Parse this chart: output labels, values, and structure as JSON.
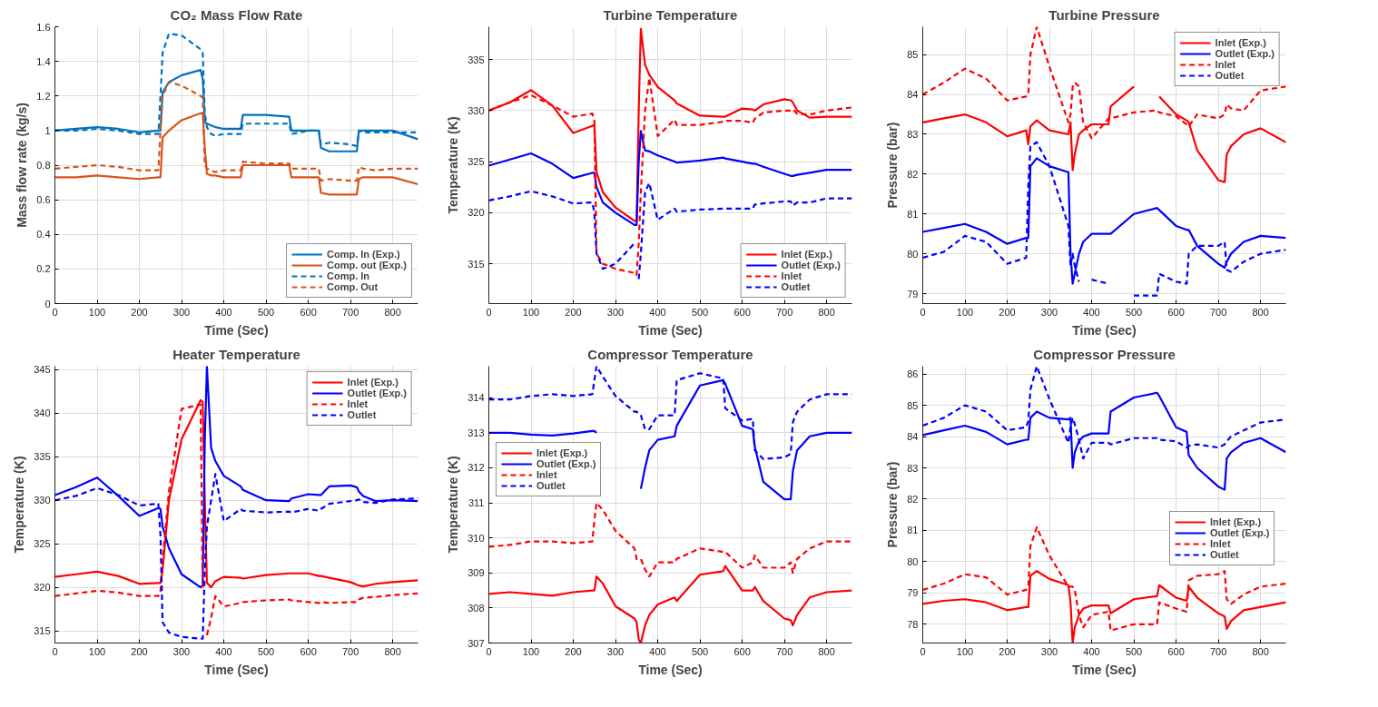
{
  "chart_data": [
    {
      "type": "line",
      "title": "CO₂ Mass Flow Rate",
      "xlabel": "Time (Sec)",
      "ylabel": "Mass flow rate (kg/s)",
      "xlim": [
        0,
        860
      ],
      "ylim": [
        0,
        1.6
      ],
      "xticks": [
        0,
        100,
        200,
        300,
        400,
        500,
        600,
        700,
        800
      ],
      "yticks": [
        0,
        0.2,
        0.4,
        0.6,
        0.8,
        1,
        1.2,
        1.4,
        1.6
      ],
      "grid": true,
      "legend": "bottom right",
      "x": [
        0,
        50,
        100,
        150,
        200,
        245,
        250,
        255,
        270,
        300,
        345,
        350,
        355,
        360,
        370,
        380,
        400,
        440,
        445,
        500,
        555,
        560,
        600,
        625,
        630,
        650,
        700,
        715,
        720,
        730,
        760,
        800,
        860
      ],
      "series": [
        {
          "name": "Comp. In (Exp.)",
          "color": "#0072bd",
          "line_style": "solid",
          "values": [
            1.0,
            1.01,
            1.02,
            1.01,
            0.99,
            1.0,
            1.0,
            1.22,
            1.28,
            1.32,
            1.35,
            1.3,
            1.05,
            1.04,
            1.03,
            1.02,
            1.01,
            1.01,
            1.09,
            1.09,
            1.08,
            1.0,
            1.0,
            1.0,
            0.9,
            0.88,
            0.88,
            0.88,
            1.0,
            1.0,
            1.0,
            1.0,
            0.95
          ]
        },
        {
          "name": "Comp. out (Exp.)",
          "color": "#d95319",
          "line_style": "solid",
          "values": [
            0.73,
            0.73,
            0.74,
            0.73,
            0.72,
            0.73,
            0.73,
            0.96,
            1.0,
            1.06,
            1.1,
            1.1,
            0.9,
            0.75,
            0.74,
            0.74,
            0.73,
            0.73,
            0.8,
            0.8,
            0.8,
            0.73,
            0.73,
            0.73,
            0.64,
            0.63,
            0.63,
            0.63,
            0.72,
            0.73,
            0.73,
            0.73,
            0.69
          ]
        },
        {
          "name": "Comp. In",
          "color": "#0072bd",
          "line_style": "dashed",
          "values": [
            1.0,
            1.0,
            1.01,
            1.0,
            0.98,
            0.98,
            1.2,
            1.45,
            1.56,
            1.55,
            1.47,
            1.45,
            1.1,
            1.02,
            0.98,
            0.97,
            0.98,
            0.98,
            1.04,
            1.04,
            1.04,
            0.98,
            1.0,
            1.0,
            0.92,
            0.93,
            0.92,
            0.91,
            1.0,
            0.99,
            0.99,
            0.99,
            0.99
          ]
        },
        {
          "name": "Comp. Out",
          "color": "#d95319",
          "line_style": "dashed",
          "values": [
            0.78,
            0.79,
            0.8,
            0.79,
            0.77,
            0.77,
            1.0,
            1.2,
            1.28,
            1.26,
            1.2,
            1.19,
            0.8,
            0.78,
            0.77,
            0.76,
            0.77,
            0.77,
            0.82,
            0.81,
            0.81,
            0.78,
            0.78,
            0.78,
            0.71,
            0.72,
            0.71,
            0.71,
            0.79,
            0.78,
            0.77,
            0.78,
            0.78
          ]
        }
      ]
    },
    {
      "type": "line",
      "title": "Turbine Temperature",
      "xlabel": "Time (Sec)",
      "ylabel": "Temperature (K)",
      "xlim": [
        0,
        860
      ],
      "ylim": [
        311.1,
        338.2
      ],
      "xticks": [
        0,
        100,
        200,
        300,
        400,
        500,
        600,
        700,
        800
      ],
      "yticks": [
        315,
        320,
        325,
        330,
        335
      ],
      "grid": true,
      "legend": "bottom right",
      "x": [
        0,
        50,
        100,
        150,
        200,
        245,
        250,
        255,
        270,
        300,
        345,
        350,
        355,
        360,
        370,
        380,
        400,
        440,
        445,
        500,
        555,
        560,
        600,
        625,
        630,
        650,
        700,
        715,
        720,
        730,
        760,
        800,
        860
      ],
      "series": [
        {
          "name": "Inlet (Exp.)",
          "color": "#ff0000",
          "line_style": "solid",
          "values": [
            330,
            330.8,
            332,
            330.5,
            327.8,
            328.5,
            328.6,
            324,
            322,
            320.5,
            319.2,
            319.2,
            330,
            338,
            334.5,
            333.5,
            332.3,
            331,
            330.7,
            329.5,
            329.4,
            329.4,
            330.2,
            330.1,
            330,
            330.6,
            331.1,
            331,
            330.8,
            330,
            329.3,
            329.4,
            329.4
          ]
        },
        {
          "name": "Outlet (Exp.)",
          "color": "#0000ff",
          "line_style": "solid",
          "values": [
            324.6,
            325.2,
            325.8,
            324.8,
            323.4,
            323.9,
            323.9,
            322.5,
            321,
            320,
            318.8,
            318.8,
            325,
            328,
            326.1,
            326,
            325.6,
            325,
            324.9,
            325.1,
            325.4,
            325.3,
            325,
            324.8,
            324.8,
            324.5,
            323.8,
            323.6,
            323.6,
            323.7,
            323.9,
            324.2,
            324.2
          ]
        },
        {
          "name": "Inlet",
          "color": "#ff0000",
          "line_style": "dashed",
          "values": [
            330,
            330.8,
            331.5,
            330.5,
            329.4,
            329.7,
            329,
            316,
            315,
            314.5,
            314.1,
            313.9,
            317,
            322,
            330,
            333.2,
            327.5,
            329.1,
            328.6,
            328.6,
            328.9,
            329,
            329,
            328.8,
            329.2,
            329.8,
            330,
            330,
            330.1,
            329.7,
            329.6,
            330,
            330.3
          ]
        },
        {
          "name": "Outlet",
          "color": "#0000ff",
          "line_style": "dashed",
          "values": [
            321.2,
            321.6,
            322.1,
            321.6,
            320.9,
            321,
            320,
            316,
            314.5,
            315,
            317,
            null,
            313.5,
            316,
            322,
            322.9,
            319.3,
            320.4,
            320.1,
            320.3,
            320.4,
            320.4,
            320.4,
            320.4,
            320.8,
            320.9,
            321.1,
            321.1,
            320.7,
            321,
            321,
            321.4,
            321.4
          ]
        }
      ]
    },
    {
      "type": "line",
      "title": "Turbine Pressure",
      "xlabel": "Time (Sec)",
      "ylabel": "Pressure (bar)",
      "xlim": [
        0,
        860
      ],
      "ylim": [
        78.75,
        85.7
      ],
      "xticks": [
        0,
        100,
        200,
        300,
        400,
        500,
        600,
        700,
        800
      ],
      "yticks": [
        79,
        80,
        81,
        82,
        83,
        84,
        85
      ],
      "grid": true,
      "legend": "top right",
      "x": [
        0,
        50,
        100,
        150,
        200,
        245,
        250,
        255,
        270,
        300,
        345,
        350,
        355,
        360,
        370,
        380,
        400,
        440,
        445,
        500,
        555,
        560,
        600,
        625,
        630,
        650,
        700,
        715,
        720,
        730,
        760,
        800,
        860
      ],
      "series": [
        {
          "name": "Inlet (Exp.)",
          "color": "#ff0000",
          "line_style": "solid",
          "values": [
            83.3,
            83.4,
            83.5,
            83.3,
            82.95,
            83.1,
            82.75,
            83.2,
            83.35,
            83.1,
            83,
            83.3,
            82.1,
            82.5,
            83,
            83.1,
            83.25,
            83.25,
            83.7,
            84.2,
            null,
            83.95,
            83.5,
            83.35,
            83.3,
            82.6,
            81.85,
            81.8,
            82.5,
            82.7,
            83,
            83.15,
            82.8
          ]
        },
        {
          "name": "Outlet (Exp.)",
          "color": "#0000ff",
          "line_style": "solid",
          "values": [
            80.55,
            80.65,
            80.75,
            80.55,
            80.25,
            80.4,
            80.4,
            82.2,
            82.4,
            82.2,
            82.05,
            80,
            79.25,
            79.5,
            80,
            80.3,
            80.5,
            80.5,
            80.5,
            81,
            81.15,
            81.1,
            80.7,
            80.6,
            80.6,
            80.2,
            79.75,
            79.65,
            79.8,
            80,
            80.3,
            80.45,
            80.4
          ]
        },
        {
          "name": "Inlet",
          "color": "#ff0000",
          "line_style": "dashed",
          "values": [
            84,
            84.3,
            84.65,
            84.4,
            83.85,
            83.95,
            84,
            85,
            85.7,
            84.7,
            83.3,
            83.5,
            84.2,
            84.3,
            84.2,
            83.3,
            82.9,
            83.4,
            83.4,
            83.55,
            83.6,
            83.55,
            83.45,
            83.25,
            83.2,
            83.5,
            83.4,
            83.5,
            83.75,
            83.65,
            83.6,
            84.1,
            84.2
          ]
        },
        {
          "name": "Outlet",
          "color": "#0000ff",
          "line_style": "dashed",
          "values": [
            79.9,
            80.05,
            80.45,
            80.3,
            79.75,
            79.9,
            81.7,
            82.7,
            82.8,
            82.2,
            80.7,
            79.7,
            80,
            79.7,
            79.3,
            null,
            79.35,
            79.25,
            null,
            78.95,
            78.95,
            79.5,
            79.3,
            79.25,
            80,
            80.2,
            80.2,
            80.3,
            79.6,
            79.55,
            79.8,
            80,
            80.1
          ]
        }
      ]
    },
    {
      "type": "line",
      "title": "Heater Temperature",
      "xlabel": "Time (Sec)",
      "ylabel": "Temperature (K)",
      "xlim": [
        0,
        860
      ],
      "ylim": [
        313.6,
        345.4
      ],
      "xticks": [
        0,
        100,
        200,
        300,
        400,
        500,
        600,
        700,
        800
      ],
      "yticks": [
        315,
        320,
        325,
        330,
        335,
        340,
        345
      ],
      "grid": true,
      "legend": "top right",
      "x": [
        0,
        50,
        100,
        150,
        200,
        245,
        250,
        255,
        270,
        300,
        345,
        350,
        355,
        360,
        370,
        380,
        400,
        440,
        445,
        500,
        555,
        560,
        600,
        625,
        630,
        650,
        700,
        715,
        720,
        730,
        760,
        800,
        860
      ],
      "series": [
        {
          "name": "Inlet (Exp.)",
          "color": "#ff0000",
          "line_style": "solid",
          "values": [
            321.2,
            321.5,
            321.8,
            321.3,
            320.4,
            320.5,
            320.5,
            322,
            330,
            337,
            341.5,
            341.3,
            330,
            320.5,
            320,
            320.7,
            321.2,
            321.1,
            321,
            321.4,
            321.6,
            321.6,
            321.6,
            321.3,
            321.3,
            321.1,
            320.6,
            320.3,
            320.2,
            320.1,
            320.4,
            320.6,
            320.8
          ]
        },
        {
          "name": "Outlet (Exp.)",
          "color": "#0000ff",
          "line_style": "solid",
          "values": [
            330.6,
            331.5,
            332.6,
            330.5,
            328.2,
            329.1,
            329,
            327,
            324.5,
            321.5,
            320,
            320.2,
            337,
            345.4,
            336,
            334.5,
            332.8,
            331.6,
            331.2,
            330,
            329.9,
            330.2,
            330.7,
            330.6,
            330.6,
            331.6,
            331.7,
            331.5,
            331,
            330.5,
            329.9,
            330,
            329.9
          ]
        },
        {
          "name": "Inlet",
          "color": "#ff0000",
          "line_style": "dashed",
          "values": [
            319,
            319.3,
            319.6,
            319.4,
            319,
            319,
            319.5,
            323,
            331,
            340.5,
            341,
            320,
            null,
            314.5,
            316.5,
            319,
            317.8,
            318.2,
            318.3,
            318.5,
            318.6,
            318.5,
            318.3,
            318.2,
            318.3,
            318.2,
            318.3,
            318.3,
            318.6,
            318.8,
            318.9,
            319.1,
            319.3
          ]
        },
        {
          "name": "Outlet",
          "color": "#0000ff",
          "line_style": "dashed",
          "values": [
            330,
            330.5,
            331.4,
            330.6,
            329.4,
            329.6,
            326,
            316,
            314.8,
            314.3,
            314.1,
            314.1,
            322,
            327,
            330,
            333,
            327.6,
            329,
            328.8,
            328.6,
            328.7,
            328.6,
            329,
            328.8,
            329,
            329.6,
            329.9,
            330,
            330.1,
            329.8,
            329.7,
            330.1,
            330.2
          ]
        }
      ]
    },
    {
      "type": "line",
      "title": "Compressor Temperature",
      "xlabel": "Time (Sec)",
      "ylabel": "Temperature (K)",
      "xlim": [
        0,
        860
      ],
      "ylim": [
        307,
        314.9
      ],
      "xticks": [
        0,
        100,
        200,
        300,
        400,
        500,
        600,
        700,
        800
      ],
      "yticks": [
        307,
        308,
        309,
        310,
        311,
        312,
        313,
        314
      ],
      "grid": true,
      "legend": "left",
      "x": [
        0,
        50,
        100,
        150,
        200,
        245,
        250,
        255,
        270,
        300,
        345,
        350,
        355,
        360,
        370,
        380,
        400,
        440,
        445,
        500,
        555,
        560,
        600,
        625,
        630,
        650,
        700,
        715,
        720,
        730,
        760,
        800,
        860
      ],
      "series": [
        {
          "name": "Inlet (Exp.)",
          "color": "#ff0000",
          "line_style": "solid",
          "values": [
            308.4,
            308.45,
            308.4,
            308.35,
            308.45,
            308.5,
            308.5,
            308.9,
            308.7,
            308.05,
            307.7,
            307.6,
            307.1,
            307,
            307.5,
            307.8,
            308.1,
            308.3,
            308.2,
            308.95,
            309.05,
            309.2,
            308.5,
            308.5,
            308.6,
            308.2,
            307.7,
            307.65,
            307.5,
            307.8,
            308.3,
            308.45,
            308.5
          ]
        },
        {
          "name": "Outlet (Exp.)",
          "color": "#0000ff",
          "line_style": "solid",
          "values": [
            313,
            313,
            312.95,
            312.92,
            312.98,
            313.05,
            313.05,
            313,
            null,
            null,
            null,
            null,
            null,
            311.4,
            312,
            312.5,
            312.8,
            312.9,
            313.2,
            314.35,
            314.5,
            314.4,
            313.2,
            313.1,
            312.6,
            311.6,
            311.1,
            311.1,
            311.9,
            312.5,
            312.9,
            313,
            313
          ]
        },
        {
          "name": "Inlet",
          "color": "#ff0000",
          "line_style": "dashed",
          "values": [
            309.75,
            309.8,
            309.9,
            309.9,
            309.85,
            309.9,
            310.5,
            311,
            310.8,
            310.2,
            309.7,
            309.4,
            309.4,
            309.4,
            309.1,
            308.9,
            309.3,
            309.3,
            309.4,
            309.7,
            309.6,
            309.6,
            309.15,
            309.3,
            309.5,
            309.15,
            309.15,
            309.3,
            309,
            309.4,
            309.7,
            309.9,
            309.9
          ]
        },
        {
          "name": "Outlet",
          "color": "#0000ff",
          "line_style": "dashed",
          "values": [
            313.95,
            313.95,
            314.05,
            314.1,
            314.05,
            314.1,
            314.5,
            314.9,
            314.6,
            314.05,
            313.6,
            313.6,
            313.55,
            313.5,
            313.1,
            313.1,
            313.5,
            313.5,
            314.5,
            314.7,
            314.55,
            313.7,
            313.35,
            313.4,
            312.5,
            312.25,
            312.3,
            312.4,
            313.3,
            313.6,
            313.95,
            314.1,
            314.1
          ]
        }
      ]
    },
    {
      "type": "line",
      "title": "Compressor Pressure",
      "xlabel": "Time (Sec)",
      "ylabel": "Pressure (bar)",
      "xlim": [
        0,
        860
      ],
      "ylim": [
        77.4,
        86.25
      ],
      "xticks": [
        0,
        100,
        200,
        300,
        400,
        500,
        600,
        700,
        800
      ],
      "yticks": [
        78,
        79,
        80,
        81,
        82,
        83,
        84,
        85,
        86
      ],
      "grid": true,
      "legend": "right",
      "x": [
        0,
        50,
        100,
        150,
        200,
        245,
        250,
        255,
        270,
        300,
        345,
        350,
        355,
        360,
        370,
        380,
        400,
        440,
        445,
        500,
        555,
        560,
        600,
        625,
        630,
        650,
        700,
        715,
        720,
        730,
        760,
        800,
        860
      ],
      "series": [
        {
          "name": "Inlet (Exp.)",
          "color": "#ff0000",
          "line_style": "solid",
          "values": [
            78.65,
            78.75,
            78.8,
            78.7,
            78.45,
            78.55,
            78.55,
            79.55,
            79.7,
            79.45,
            79.25,
            78.7,
            77.4,
            77.9,
            78.3,
            78.5,
            78.6,
            78.6,
            78.35,
            78.8,
            78.9,
            79.25,
            78.85,
            78.75,
            79.2,
            78.85,
            78.35,
            78.25,
            77.85,
            78.1,
            78.45,
            78.55,
            78.7
          ]
        },
        {
          "name": "Outlet (Exp.)",
          "color": "#0000ff",
          "line_style": "solid",
          "values": [
            84.05,
            84.2,
            84.35,
            84.15,
            83.75,
            83.9,
            83.9,
            84.6,
            84.8,
            84.6,
            84.55,
            84.6,
            83,
            83.5,
            83.85,
            84,
            84.1,
            84.1,
            84.8,
            85.25,
            85.4,
            85.3,
            84.3,
            84.15,
            83.4,
            83,
            82.4,
            82.3,
            83.3,
            83.5,
            83.8,
            83.95,
            83.5
          ]
        },
        {
          "name": "Inlet",
          "color": "#ff0000",
          "line_style": "dashed",
          "values": [
            79.1,
            79.3,
            79.6,
            79.5,
            78.95,
            79.1,
            79.2,
            80.5,
            81.1,
            80.2,
            79.2,
            79.2,
            79.2,
            79.1,
            78.3,
            77.9,
            78.3,
            78.4,
            77.8,
            78,
            78,
            78.7,
            78.5,
            78.4,
            79.4,
            79.55,
            79.6,
            79.7,
            78.8,
            78.65,
            78.95,
            79.2,
            79.3
          ]
        },
        {
          "name": "Outlet",
          "color": "#0000ff",
          "line_style": "dashed",
          "values": [
            84.35,
            84.6,
            85,
            84.8,
            84.2,
            84.3,
            84.5,
            85.5,
            86.25,
            85.2,
            83.8,
            84.3,
            84.6,
            84.4,
            83.9,
            83.3,
            83.8,
            83.8,
            83.75,
            83.95,
            83.95,
            83.9,
            83.85,
            83.65,
            83.7,
            83.75,
            83.65,
            83.75,
            83.85,
            84,
            84.2,
            84.45,
            84.55
          ]
        }
      ]
    }
  ]
}
